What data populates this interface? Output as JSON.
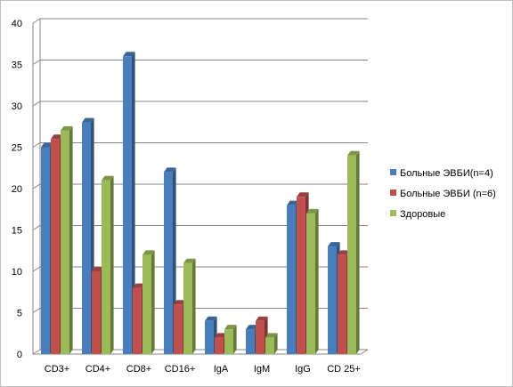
{
  "chart_data": {
    "type": "bar",
    "title": "",
    "xlabel": "",
    "ylabel": "",
    "categories": [
      "CD3+",
      "CD4+",
      "CD8+",
      "CD16+",
      "IgA",
      "IgM",
      "IgG",
      "CD 25+"
    ],
    "series": [
      {
        "name": "Больные ЭВБИ(n=4)",
        "color": "#4a7ebb",
        "values": [
          25,
          28,
          36,
          22,
          4,
          3,
          18,
          13
        ]
      },
      {
        "name": "Больные ЭВБИ (n=6)",
        "color": "#c0504d",
        "values": [
          26,
          10,
          8,
          6,
          2,
          4,
          19,
          12
        ]
      },
      {
        "name": "Здоровые",
        "color": "#9bbb59",
        "values": [
          27,
          21,
          12,
          11,
          3,
          2,
          17,
          24
        ]
      }
    ],
    "ylim": [
      0,
      40
    ],
    "yticks": [
      0,
      5,
      10,
      15,
      20,
      25,
      30,
      35,
      40
    ],
    "grid": true,
    "legend_position": "right"
  }
}
